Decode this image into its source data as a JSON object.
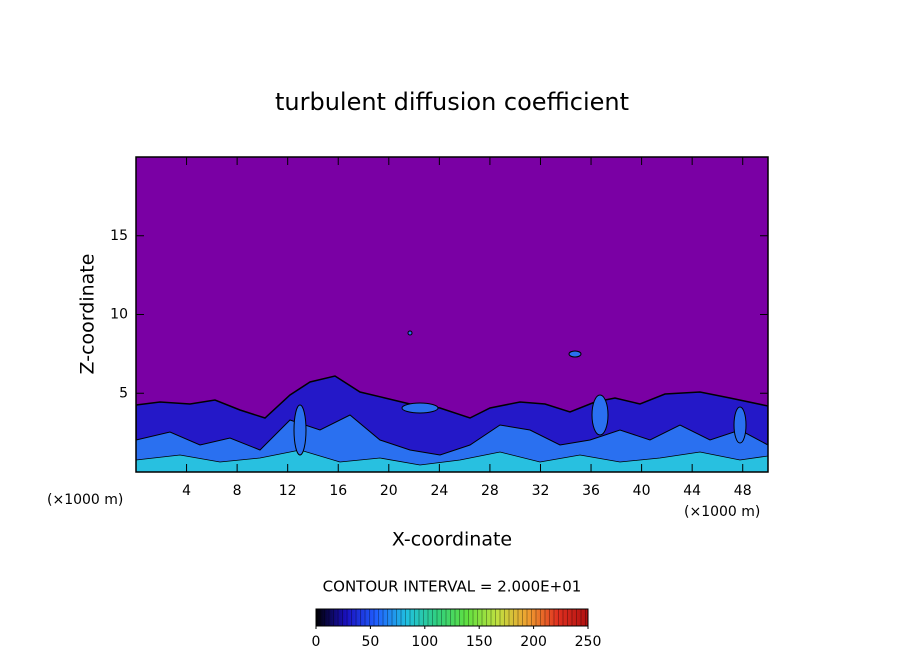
{
  "chart_data": {
    "type": "contour",
    "title": "turbulent diffusion coefficient",
    "xlabel": "X-coordinate",
    "ylabel": "Z-coordinate",
    "xunit": "(×1000 m)",
    "yunit": "(×1000 m)",
    "xlim": [
      0,
      50
    ],
    "ylim": [
      0,
      20
    ],
    "xticks": [
      4,
      8,
      12,
      16,
      20,
      24,
      28,
      32,
      36,
      40,
      44,
      48
    ],
    "yticks": [
      5,
      10,
      15
    ],
    "contour_interval_label": "CONTOUR INTERVAL = 2.000E+01",
    "clim": [
      0,
      250
    ],
    "cticks": [
      0,
      50,
      100,
      150,
      200,
      250
    ],
    "colormap": [
      "#000000",
      "#1a10c0",
      "#2060ff",
      "#20c0e0",
      "#30d080",
      "#60e040",
      "#c0e040",
      "#f0a030",
      "#e03020",
      "#b01010"
    ],
    "background_color": "#7a00a4"
  }
}
